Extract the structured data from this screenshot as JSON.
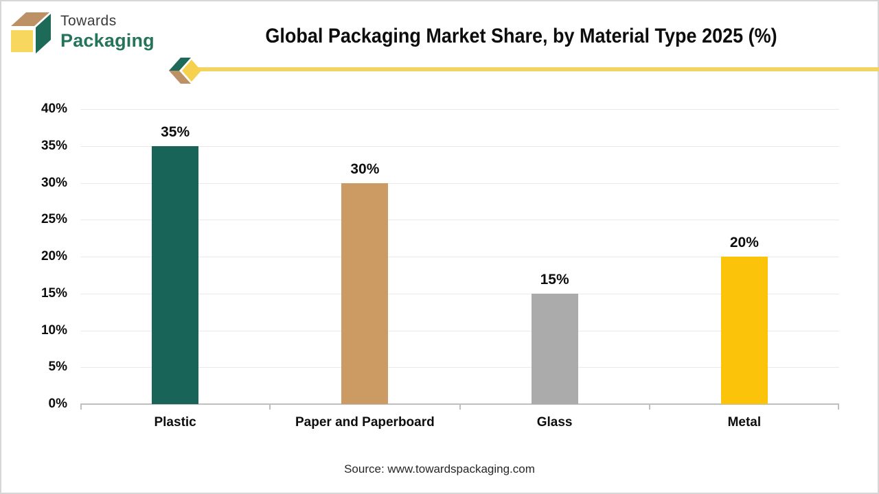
{
  "logo": {
    "line1": "Towards",
    "line2": "Packaging",
    "box_colors": {
      "top": "#bd9166",
      "side": "#1d6a58",
      "front": "#f8d75e"
    }
  },
  "header": {
    "title": "Global Packaging Market Share, by Material Type 2025 (%)",
    "accent_line_color": "#f2d462",
    "chevron_colors": {
      "top": "#1d6a58",
      "bottom": "#bd9166",
      "diamond": "#f5d14f"
    }
  },
  "chart_data": {
    "type": "bar",
    "title": "Global Packaging Market Share, by Material Type 2025 (%)",
    "categories": [
      "Plastic",
      "Paper and Paperboard",
      "Glass",
      "Metal"
    ],
    "values": [
      35,
      30,
      15,
      20
    ],
    "value_labels": [
      "35%",
      "30%",
      "15%",
      "20%"
    ],
    "bar_colors": [
      "#186459",
      "#cc9a63",
      "#ababab",
      "#fcc30b"
    ],
    "xlabel": "",
    "ylabel": "",
    "ylim": [
      0,
      40
    ],
    "ytick_step": 5,
    "ytick_labels": [
      "0%",
      "5%",
      "10%",
      "15%",
      "20%",
      "25%",
      "30%",
      "35%",
      "40%"
    ],
    "grid": true,
    "gridline_color": "#e9e9e9",
    "axis_color": "#bfbfbf",
    "legend": "none"
  },
  "footer": {
    "source": "Source: www.towardspackaging.com"
  }
}
